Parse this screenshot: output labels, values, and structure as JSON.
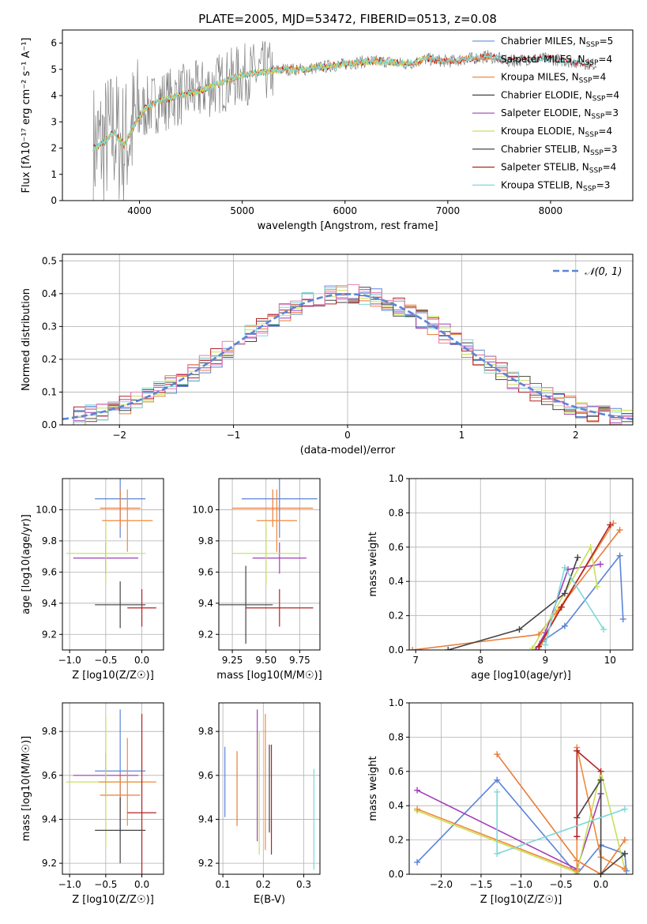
{
  "figure": {
    "title": "PLATE=2005, MJD=53472, FIBERID=0513, z=0.08"
  },
  "legend": {
    "entries": [
      {
        "label": "Chabrier MILES, N",
        "sub": "SSP",
        "tail": "=5",
        "color": "#6f9ae0"
      },
      {
        "label": "Salpeter MILES, N",
        "sub": "SSP",
        "tail": "=4",
        "color": "#e87c3a"
      },
      {
        "label": "Kroupa MILES, N",
        "sub": "SSP",
        "tail": "=4",
        "color": "#f08a3c"
      },
      {
        "label": "Chabrier ELODIE, N",
        "sub": "SSP",
        "tail": "=4",
        "color": "#444444"
      },
      {
        "label": "Salpeter ELODIE, N",
        "sub": "SSP",
        "tail": "=3",
        "color": "#a040b8"
      },
      {
        "label": "Kroupa ELODIE, N",
        "sub": "SSP",
        "tail": "=4",
        "color": "#c8e05a"
      },
      {
        "label": "Chabrier STELIB, N",
        "sub": "SSP",
        "tail": "=3",
        "color": "#333333"
      },
      {
        "label": "Salpeter STELIB, N",
        "sub": "SSP",
        "tail": "=4",
        "color": "#b22222"
      },
      {
        "label": "Kroupa STELIB, N",
        "sub": "SSP",
        "tail": "=3",
        "color": "#7fd8d8"
      }
    ]
  },
  "series_colors": [
    "#5b84d8",
    "#e87c3a",
    "#a040b8",
    "#c8e05a",
    "#f08a3c",
    "#444444",
    "#b22222",
    "#7fd8d8",
    "#e87fb0",
    "#5aaa55"
  ],
  "chart_data": [
    {
      "id": "spectrum",
      "type": "line",
      "xlabel": "wavelength [Angstrom, rest frame]",
      "ylabel": "Flux [fλ10⁻¹⁷ erg cm⁻² s⁻¹ A⁻¹]",
      "xlim": [
        3250,
        8800
      ],
      "ylim": [
        0,
        6.5
      ],
      "xticks": [
        4000,
        5000,
        6000,
        7000,
        8000
      ],
      "yticks": [
        0,
        1,
        2,
        3,
        4,
        5,
        6
      ],
      "grid": false,
      "data": {
        "x": [
          3550,
          3650,
          3750,
          3850,
          3950,
          4050,
          4200,
          4400,
          4600,
          4800,
          5000,
          5200,
          5400,
          5600,
          5800,
          6000,
          6200,
          6400,
          6600,
          6800,
          7000,
          7200,
          7400,
          7600,
          7800,
          8000,
          8200,
          8400
        ],
        "y": [
          2.0,
          2.2,
          2.6,
          2.1,
          2.9,
          3.5,
          3.8,
          4.0,
          4.2,
          4.5,
          4.8,
          4.9,
          5.0,
          5.0,
          5.1,
          5.2,
          5.3,
          5.3,
          5.2,
          5.4,
          5.3,
          5.4,
          5.5,
          5.3,
          5.4,
          5.4,
          5.3,
          5.2
        ]
      }
    },
    {
      "id": "residuals",
      "type": "line",
      "xlabel": "(data-model)/error",
      "ylabel": "Normed distribution",
      "xlim": [
        -2.5,
        2.5
      ],
      "ylim": [
        0,
        0.52
      ],
      "xticks": [
        -2,
        -1,
        0,
        1,
        2
      ],
      "yticks": [
        0.0,
        0.1,
        0.2,
        0.3,
        0.4,
        0.5
      ],
      "grid": true,
      "legend": "N(0,1)",
      "series": [
        {
          "name": "N(0,1)",
          "x": [
            -2.5,
            2.5
          ],
          "y": [
            0.018,
            0.018
          ]
        }
      ]
    },
    {
      "id": "age_vs_Z",
      "type": "scatter",
      "xlabel": "Z [log10(Z/Z☉)]",
      "ylabel": "age  [log10(age/yr)]",
      "xlim": [
        -1.1,
        0.3
      ],
      "ylim": [
        9.1,
        10.2
      ],
      "xticks": [
        -1.0,
        -0.5,
        0.0
      ],
      "yticks": [
        9.2,
        9.4,
        9.6,
        9.8,
        10.0
      ],
      "grid": true,
      "points": [
        {
          "x": -0.3,
          "y": 10.07,
          "xerr": 0.35,
          "yerr": 0.25
        },
        {
          "x": -0.3,
          "y": 10.01,
          "xerr": 0.28,
          "yerr": 0.12
        },
        {
          "x": -0.5,
          "y": 9.69,
          "xerr": 0.45,
          "yerr": 0.1
        },
        {
          "x": -0.5,
          "y": 9.72,
          "xerr": 0.55,
          "yerr": 0.2
        },
        {
          "x": -0.2,
          "y": 9.93,
          "xerr": 0.35,
          "yerr": 0.2
        },
        {
          "x": -0.3,
          "y": 9.39,
          "xerr": 0.35,
          "yerr": 0.15
        },
        {
          "x": 0.0,
          "y": 9.37,
          "xerr": 0.2,
          "yerr": 0.12
        }
      ]
    },
    {
      "id": "age_vs_mass",
      "type": "scatter",
      "xlabel": "mass [log10(M/M☉)]",
      "ylabel": "",
      "xlim": [
        9.15,
        9.9
      ],
      "ylim": [
        9.1,
        10.2
      ],
      "xticks": [
        9.25,
        9.5,
        9.75
      ],
      "yticks": [
        9.2,
        9.4,
        9.6,
        9.8,
        10.0
      ],
      "grid": true,
      "points": [
        {
          "x": 9.6,
          "y": 10.07,
          "xerr": 0.28,
          "yerr": 0.25
        },
        {
          "x": 9.55,
          "y": 10.01,
          "xerr": 0.3,
          "yerr": 0.12
        },
        {
          "x": 9.6,
          "y": 9.69,
          "xerr": 0.2,
          "yerr": 0.1
        },
        {
          "x": 9.5,
          "y": 9.72,
          "xerr": 0.25,
          "yerr": 0.2
        },
        {
          "x": 9.58,
          "y": 9.93,
          "xerr": 0.15,
          "yerr": 0.2
        },
        {
          "x": 9.35,
          "y": 9.39,
          "xerr": 0.2,
          "yerr": 0.25
        },
        {
          "x": 9.6,
          "y": 9.37,
          "xerr": 0.25,
          "yerr": 0.12
        }
      ]
    },
    {
      "id": "massweight_vs_age",
      "type": "line",
      "xlabel": "age  [log10(age/yr)]",
      "ylabel": "mass weight",
      "xlim": [
        6.9,
        10.35
      ],
      "ylim": [
        0,
        1.0
      ],
      "xticks": [
        7,
        8,
        9,
        10
      ],
      "yticks": [
        0.0,
        0.2,
        0.4,
        0.6,
        0.8,
        1.0
      ],
      "grid": true,
      "series": [
        {
          "x": [
            8.95,
            9.3,
            10.15,
            10.2
          ],
          "y": [
            0.05,
            0.14,
            0.55,
            0.18
          ]
        },
        {
          "x": [
            6.95,
            8.9,
            10.15
          ],
          "y": [
            0.0,
            0.09,
            0.7
          ]
        },
        {
          "x": [
            8.85,
            9.0,
            9.35,
            9.85
          ],
          "y": [
            0.0,
            0.1,
            0.47,
            0.5
          ]
        },
        {
          "x": [
            8.8,
            9.1,
            9.7,
            9.8
          ],
          "y": [
            0.01,
            0.2,
            0.6,
            0.37
          ]
        },
        {
          "x": [
            8.9,
            9.2,
            10.05
          ],
          "y": [
            0.0,
            0.23,
            0.74
          ]
        },
        {
          "x": [
            7.5,
            8.6,
            9.3,
            9.5
          ],
          "y": [
            0.0,
            0.12,
            0.33,
            0.54
          ]
        },
        {
          "x": [
            8.9,
            9.25,
            10.0
          ],
          "y": [
            0.02,
            0.25,
            0.73
          ]
        },
        {
          "x": [
            9.0,
            9.3,
            9.9
          ],
          "y": [
            0.03,
            0.48,
            0.12
          ]
        }
      ]
    },
    {
      "id": "mass_vs_Z",
      "type": "scatter",
      "xlabel": "Z [log10(Z/Z☉)]",
      "ylabel": "mass [log10(M/M☉)]",
      "xlim": [
        -1.1,
        0.3
      ],
      "ylim": [
        9.15,
        9.93
      ],
      "xticks": [
        -1.0,
        -0.5,
        0.0
      ],
      "yticks": [
        9.2,
        9.4,
        9.6,
        9.8
      ],
      "grid": true,
      "points": [
        {
          "x": -0.3,
          "y": 9.62,
          "xerr": 0.35,
          "yerr": 0.28
        },
        {
          "x": -0.3,
          "y": 9.51,
          "xerr": 0.28,
          "yerr": 0.1
        },
        {
          "x": -0.5,
          "y": 9.6,
          "xerr": 0.45,
          "yerr": 0.1
        },
        {
          "x": -0.5,
          "y": 9.57,
          "xerr": 0.55,
          "yerr": 0.3
        },
        {
          "x": -0.2,
          "y": 9.57,
          "xerr": 0.4,
          "yerr": 0.2
        },
        {
          "x": -0.3,
          "y": 9.35,
          "xerr": 0.35,
          "yerr": 0.15
        },
        {
          "x": 0.0,
          "y": 9.43,
          "xerr": 0.2,
          "yerr": 0.45
        }
      ]
    },
    {
      "id": "mass_vs_ebv",
      "type": "scatter",
      "xlabel": "E(B-V)",
      "ylabel": "",
      "xlim": [
        0.09,
        0.34
      ],
      "ylim": [
        9.15,
        9.93
      ],
      "xticks": [
        0.1,
        0.2,
        0.3
      ],
      "yticks": [
        9.2,
        9.4,
        9.6,
        9.8
      ],
      "grid": true,
      "points": [
        {
          "x": 0.105,
          "y": 9.57,
          "xerr": 0,
          "yerr": 0.16
        },
        {
          "x": 0.135,
          "y": 9.54,
          "xerr": 0,
          "yerr": 0.17
        },
        {
          "x": 0.185,
          "y": 9.6,
          "xerr": 0,
          "yerr": 0.3
        },
        {
          "x": 0.19,
          "y": 9.52,
          "xerr": 0,
          "yerr": 0.28
        },
        {
          "x": 0.205,
          "y": 9.57,
          "xerr": 0,
          "yerr": 0.31
        },
        {
          "x": 0.215,
          "y": 9.54,
          "xerr": 0,
          "yerr": 0.2
        },
        {
          "x": 0.22,
          "y": 9.49,
          "xerr": 0,
          "yerr": 0.25
        },
        {
          "x": 0.325,
          "y": 9.4,
          "xerr": 0,
          "yerr": 0.23
        }
      ]
    },
    {
      "id": "massweight_vs_Z",
      "type": "line",
      "xlabel": "Z [log10(Z/Z☉)]",
      "ylabel": "mass weight",
      "xlim": [
        -2.4,
        0.4
      ],
      "ylim": [
        0,
        1.0
      ],
      "xticks": [
        -2.0,
        -1.5,
        -1.0,
        -0.5,
        0.0
      ],
      "yticks": [
        0.0,
        0.2,
        0.4,
        0.6,
        0.8,
        1.0
      ],
      "grid": true,
      "series": [
        {
          "x": [
            -2.3,
            -1.3,
            -0.3,
            0.0,
            0.3,
            0.32
          ],
          "y": [
            0.07,
            0.55,
            0.0,
            0.17,
            0.12,
            0.02
          ]
        },
        {
          "x": [
            -1.3,
            -0.3,
            0.0,
            0.3
          ],
          "y": [
            0.7,
            0.08,
            0.0,
            0.2
          ]
        },
        {
          "x": [
            -2.3,
            -0.3,
            0.0
          ],
          "y": [
            0.49,
            0.03,
            0.47
          ]
        },
        {
          "x": [
            -2.3,
            -0.3,
            0.0,
            0.3
          ],
          "y": [
            0.37,
            0.01,
            0.6,
            0.03
          ]
        },
        {
          "x": [
            -2.3,
            -0.3,
            -0.3,
            0.0,
            0.3
          ],
          "y": [
            0.38,
            0.02,
            0.74,
            0.1,
            0.03
          ]
        },
        {
          "x": [
            -0.3,
            0.0,
            0.0,
            0.3
          ],
          "y": [
            0.33,
            0.55,
            0.0,
            0.12
          ]
        },
        {
          "x": [
            -0.3,
            -0.3,
            0.0
          ],
          "y": [
            0.22,
            0.72,
            0.6
          ]
        },
        {
          "x": [
            -1.3,
            -1.3,
            0.3
          ],
          "y": [
            0.48,
            0.12,
            0.38
          ]
        }
      ]
    }
  ]
}
